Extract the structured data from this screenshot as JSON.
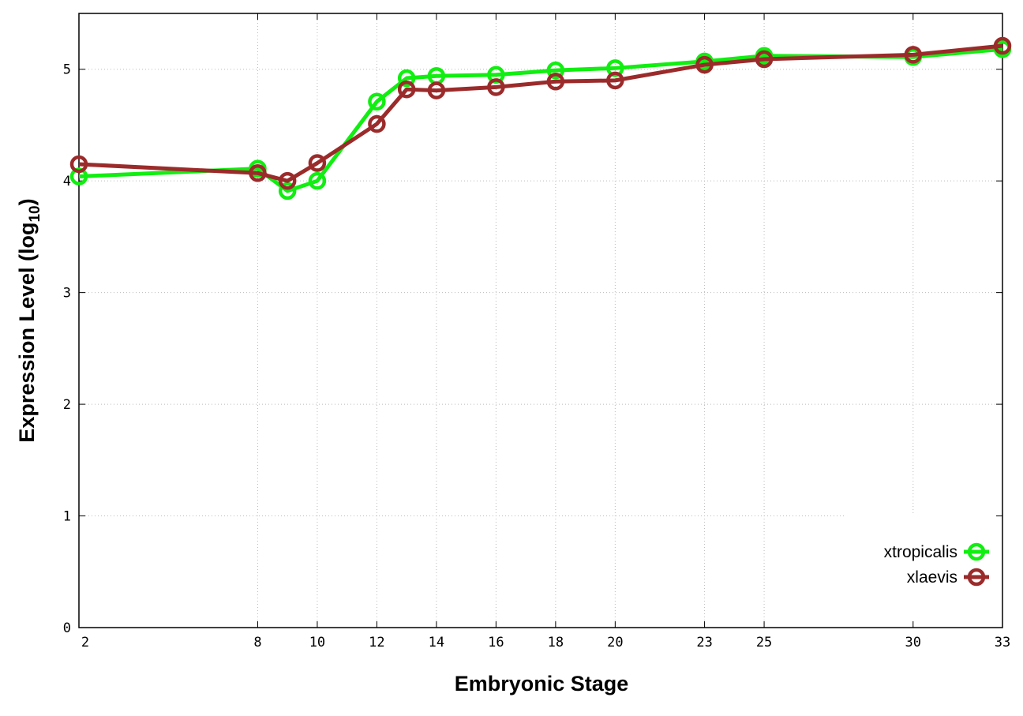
{
  "chart_data": {
    "type": "line",
    "title": "",
    "xlabel": "Embryonic Stage",
    "ylabel_main": "Expression Level (log",
    "ylabel_sub": "10",
    "ylabel_close": ")",
    "xlim": [
      2,
      33
    ],
    "ylim": [
      0,
      5.5
    ],
    "xticks": [
      2,
      8,
      10,
      12,
      14,
      16,
      18,
      20,
      23,
      25,
      30,
      33
    ],
    "yticks": [
      0,
      1,
      2,
      3,
      4,
      5
    ],
    "grid": true,
    "legend_position": "bottom-right",
    "x": [
      2,
      8,
      9,
      10,
      12,
      13,
      14,
      16,
      18,
      20,
      23,
      25,
      30,
      33
    ],
    "series": [
      {
        "name": "xtropicalis",
        "color": "#11ee11",
        "values": [
          4.04,
          4.11,
          3.91,
          4.0,
          4.71,
          4.92,
          4.94,
          4.95,
          4.99,
          5.01,
          5.07,
          5.12,
          5.11,
          5.18
        ]
      },
      {
        "name": "xlaevis",
        "color": "#9b2b2b",
        "values": [
          4.15,
          4.07,
          4.0,
          4.16,
          4.51,
          4.82,
          4.81,
          4.84,
          4.89,
          4.9,
          5.04,
          5.09,
          5.13,
          5.21
        ]
      }
    ]
  }
}
